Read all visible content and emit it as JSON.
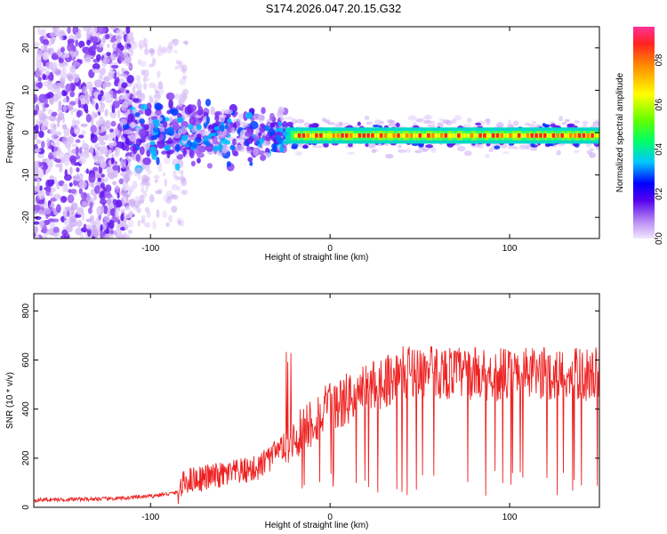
{
  "title": "S174.2026.047.20.15.G32",
  "chart_data": [
    {
      "type": "heatmap",
      "panel": "spectrogram",
      "xlabel": "Height of straight line (km)",
      "ylabel": "Frequency (Hz)",
      "xlim": [
        -165,
        150
      ],
      "ylim": [
        -25,
        25
      ],
      "xticks": [
        -100,
        0,
        100
      ],
      "yticks": [
        -20,
        -10,
        0,
        10,
        20
      ],
      "colorbar": {
        "label": "Normalized spectral amplitude",
        "range": [
          0.0,
          0.95
        ],
        "ticks": [
          0.0,
          0.2,
          0.4,
          0.6,
          0.8
        ]
      },
      "description_segments": [
        {
          "x_range": [
            -165,
            -115
          ],
          "frequency_spread": [
            -25,
            25
          ],
          "amplitude": "low, scattered"
        },
        {
          "x_range": [
            -115,
            -25
          ],
          "frequency_spread": [
            -8,
            8
          ],
          "amplitude": "medium, blobs"
        },
        {
          "x_range": [
            -25,
            150
          ],
          "frequency_center": -0.7,
          "amplitude": "high, narrow band"
        }
      ]
    },
    {
      "type": "line",
      "panel": "snr",
      "xlabel": "Height of straight line (km)",
      "ylabel": "SNR (10 * v/v)",
      "xlim": [
        -165,
        150
      ],
      "ylim": [
        0,
        870
      ],
      "xticks": [
        -100,
        0,
        100
      ],
      "yticks": [
        0,
        200,
        400,
        600,
        800
      ],
      "color": "#ee2222",
      "trend_points": [
        [
          -165,
          30
        ],
        [
          -120,
          35
        ],
        [
          -100,
          45
        ],
        [
          -85,
          60
        ],
        [
          -80,
          110
        ],
        [
          -60,
          130
        ],
        [
          -40,
          160
        ],
        [
          -25,
          250
        ],
        [
          -15,
          320
        ],
        [
          -5,
          380
        ],
        [
          5,
          420
        ],
        [
          15,
          460
        ],
        [
          25,
          500
        ],
        [
          35,
          530
        ],
        [
          45,
          560
        ],
        [
          60,
          550
        ],
        [
          80,
          545
        ],
        [
          100,
          540
        ],
        [
          120,
          545
        ],
        [
          140,
          540
        ],
        [
          150,
          545
        ]
      ]
    }
  ]
}
